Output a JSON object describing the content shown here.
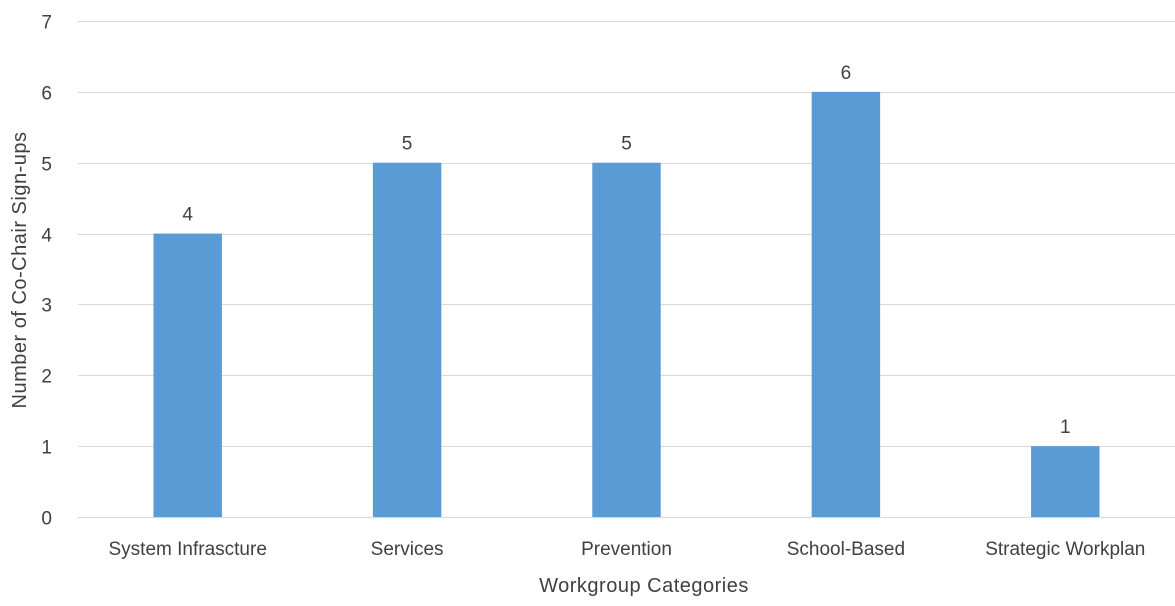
{
  "chart_data": {
    "type": "bar",
    "title": "",
    "xlabel": "Workgroup Categories",
    "ylabel": "Number of Co-Chair Sign-ups",
    "categories": [
      "System Infrascture",
      "Services",
      "Prevention",
      "School-Based",
      "Strategic Workplan"
    ],
    "values": [
      4,
      5,
      5,
      6,
      1
    ],
    "data_labels": [
      "4",
      "5",
      "5",
      "6",
      "1"
    ],
    "ylim": [
      0,
      7
    ],
    "yticks": [
      0,
      1,
      2,
      3,
      4,
      5,
      6,
      7
    ],
    "ytick_labels": [
      "0",
      "1",
      "2",
      "3",
      "4",
      "5",
      "6",
      "7"
    ],
    "grid": true,
    "legend": "none",
    "bar_color": "#5b9bd5",
    "grid_color": "#d9d9d9",
    "text_color": "#404040"
  }
}
